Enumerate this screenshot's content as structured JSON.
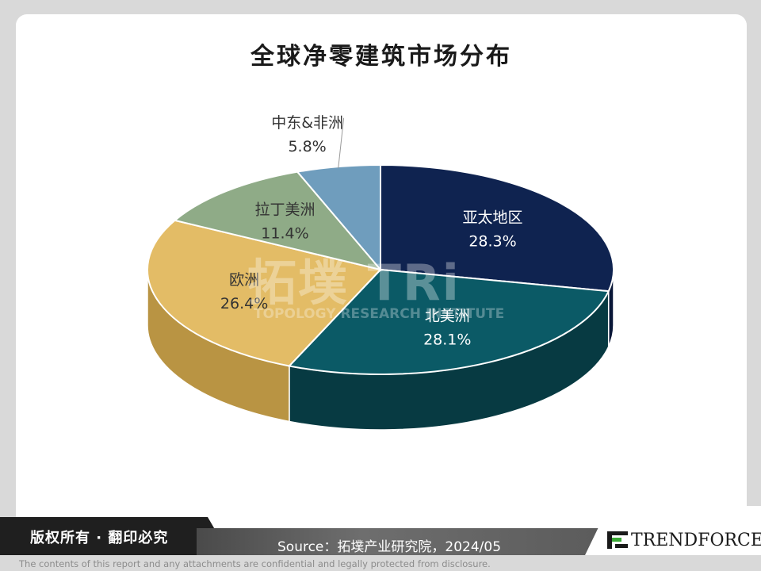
{
  "chart_data": {
    "type": "pie",
    "title": "全球净零建筑市场分布",
    "slices": [
      {
        "label": "亚太地区",
        "value": 28.3,
        "value_label": "28.3%",
        "color": "#0f2350",
        "side_color": "#0a1838",
        "text_color": "#ffffff"
      },
      {
        "label": "北美洲",
        "value": 28.1,
        "value_label": "28.1%",
        "color": "#0b5a66",
        "side_color": "#073a42",
        "text_color": "#ffffff"
      },
      {
        "label": "欧洲",
        "value": 26.4,
        "value_label": "26.4%",
        "color": "#e3bc66",
        "side_color": "#b99443",
        "text_color": "#333333"
      },
      {
        "label": "拉丁美洲",
        "value": 11.4,
        "value_label": "11.4%",
        "color": "#8fab87",
        "side_color": "#6f8a68",
        "text_color": "#333333"
      },
      {
        "label": "中东&非洲",
        "value": 5.8,
        "value_label": "5.8%",
        "color": "#6f9dbd",
        "side_color": "#557d99",
        "text_color": "#333333"
      }
    ],
    "start_angle_deg": 0,
    "direction": "clockwise",
    "style": "3d"
  },
  "watermark": {
    "main": "拓墣 TRi",
    "sub": "TOPOLOGY RESEARCH INSTITUTE"
  },
  "footer": {
    "rights": "版权所有 · 翻印必究",
    "source": "Source：拓墣产业研究院，2024/05",
    "logo": "TRENDFORCE",
    "logo_accent_color": "#3aa935",
    "disclaimer": "The contents of this report and any attachments are confidential and legally protected from disclosure."
  }
}
